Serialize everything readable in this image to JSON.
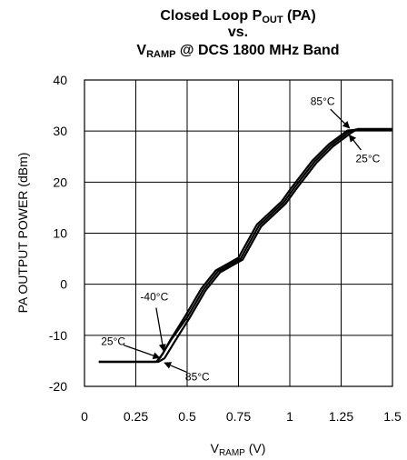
{
  "chart_data": {
    "type": "line",
    "title": {
      "line1_main": "Closed Loop P",
      "line1_sub": "OUT",
      "line1_rest": " (PA)",
      "line2": "vs.",
      "line3_main": "V",
      "line3_sub": "RAMP",
      "line3_rest": " @ DCS 1800 MHz Band"
    },
    "xlabel": {
      "main": "V",
      "sub": "RAMP",
      "rest": " (V)"
    },
    "ylabel": "PA OUTPUT POWER (dBm)",
    "xlim": [
      0,
      1.5
    ],
    "ylim": [
      -20,
      40
    ],
    "x_ticks": [
      0,
      0.25,
      0.5,
      0.75,
      1,
      1.25,
      1.5
    ],
    "x_tick_labels": [
      "0",
      "0.25",
      "0.5",
      "0.75",
      "1",
      "1.25",
      "1.5"
    ],
    "y_ticks": [
      -20,
      -10,
      0,
      10,
      20,
      30,
      40
    ],
    "y_tick_labels": [
      "-20",
      "-10",
      "0",
      "10",
      "20",
      "30",
      "40"
    ],
    "grid": true,
    "series": [
      {
        "temperature": "25°C",
        "x": [
          0.07,
          0.35,
          0.37,
          0.42,
          0.5,
          0.58,
          0.65,
          0.76,
          0.85,
          0.97,
          1.02,
          1.12,
          1.2,
          1.29,
          1.32,
          1.5
        ],
        "y": [
          -15.2,
          -15.2,
          -14.3,
          -11.0,
          -6.5,
          -1.0,
          2.5,
          5.0,
          11.5,
          16.0,
          18.8,
          24.0,
          27.2,
          29.9,
          30.3,
          30.3
        ]
      },
      {
        "temperature": "85°C",
        "x": [
          0.07,
          0.36,
          0.39,
          0.44,
          0.51,
          0.59,
          0.66,
          0.77,
          0.86,
          0.98,
          1.03,
          1.13,
          1.21,
          1.3,
          1.33,
          1.5
        ],
        "y": [
          -15.2,
          -15.2,
          -14.5,
          -11.2,
          -6.7,
          -1.2,
          2.3,
          4.8,
          11.3,
          15.8,
          18.6,
          23.8,
          27.0,
          29.7,
          30.4,
          30.4
        ]
      },
      {
        "temperature": "-40°C",
        "x": [
          0.07,
          0.35,
          0.38,
          0.42,
          0.49,
          0.57,
          0.64,
          0.75,
          0.84,
          0.96,
          1.01,
          1.11,
          1.19,
          1.28,
          1.31,
          1.5
        ],
        "y": [
          -15.2,
          -15.2,
          -13.7,
          -10.8,
          -6.3,
          -0.8,
          2.7,
          5.2,
          11.7,
          16.2,
          19.0,
          24.2,
          27.4,
          30.1,
          30.2,
          30.2
        ]
      }
    ],
    "annotations": [
      {
        "text": "85°C",
        "text_x": 1.16,
        "text_y": 35.8,
        "arrow_to_x": 1.29,
        "arrow_to_y": 30.6
      },
      {
        "text": "25°C",
        "text_x": 1.38,
        "text_y": 24.6,
        "arrow_to_x": 1.29,
        "arrow_to_y": 29.2
      },
      {
        "text": "-40°C",
        "text_x": 0.34,
        "text_y": -2.5,
        "arrow_to_x": 0.385,
        "arrow_to_y": -13.0
      },
      {
        "text": "25°C",
        "text_x": 0.14,
        "text_y": -11.2,
        "arrow_to_x": 0.365,
        "arrow_to_y": -14.4
      },
      {
        "text": "85°C",
        "text_x": 0.55,
        "text_y": -18.1,
        "arrow_to_x": 0.39,
        "arrow_to_y": -15.4
      }
    ]
  }
}
